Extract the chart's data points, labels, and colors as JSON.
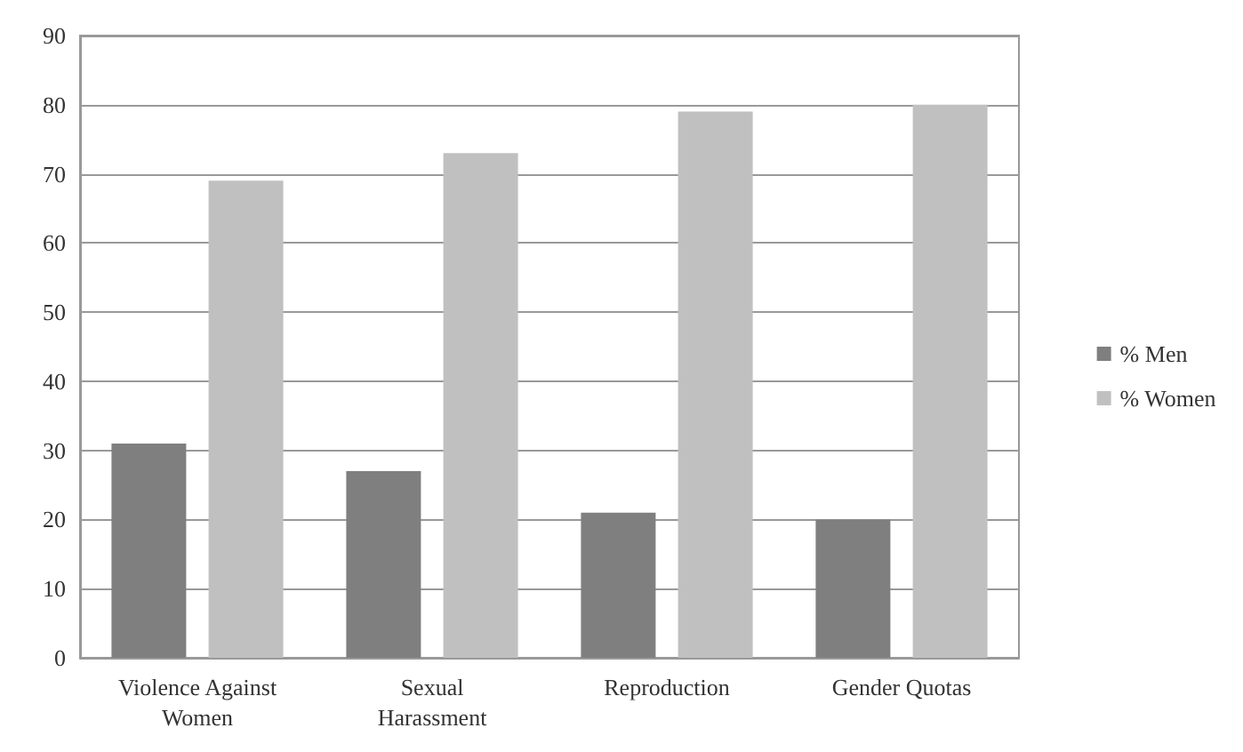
{
  "chart_data": {
    "type": "bar",
    "categories": [
      "Violence Against\nWomen",
      "Sexual\nHarassment",
      "Reproduction",
      "Gender Quotas"
    ],
    "series": [
      {
        "name": "% Men",
        "color": "#7f7f7f",
        "values": [
          31,
          27,
          21,
          20
        ]
      },
      {
        "name": "% Women",
        "color": "#c0c0c0",
        "values": [
          69,
          73,
          79,
          80
        ]
      }
    ],
    "ylim": [
      0,
      90
    ],
    "yticks": [
      0,
      10,
      20,
      30,
      40,
      50,
      60,
      70,
      80,
      90
    ],
    "grid": "y",
    "legend": "right"
  }
}
